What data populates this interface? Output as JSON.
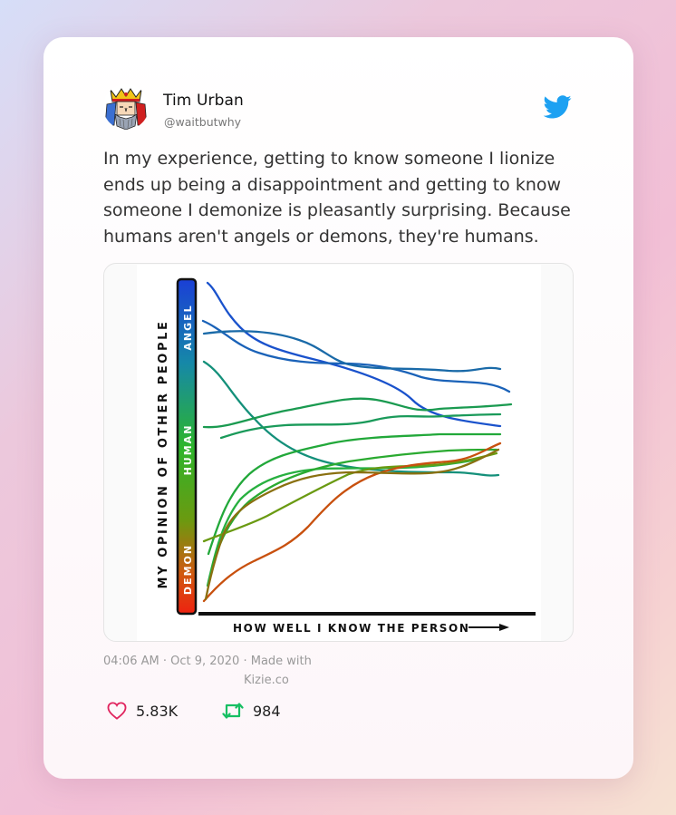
{
  "tweet": {
    "author_name": "Tim Urban",
    "author_handle": "@waitbutwhy",
    "text": "In my experience, getting to know someone I lionize ends up being a disappointment and getting to know someone I demonize is pleasantly surprising. Because humans aren't angels or demons, they're humans.",
    "timestamp": "04:06 AM · Oct 9, 2020 · Made with",
    "made_with": "Kizie.co",
    "likes": "5.83K",
    "retweets": "984"
  },
  "icons": {
    "avatar": "king-card-avatar",
    "brand": "twitter-bird-icon",
    "like": "heart-icon",
    "retweet": "retweet-icon"
  },
  "colors": {
    "twitter_blue": "#1da1f2",
    "like_red": "#e0245e",
    "retweet_green": "#17bf63"
  },
  "chart": {
    "y_label": "MY OPINION OF OTHER PEOPLE",
    "x_label": "HOW WELL I KNOW THE PERSON",
    "bar_labels": {
      "top": "ANGEL",
      "middle": "HUMAN",
      "bottom": "DEMON"
    }
  }
}
